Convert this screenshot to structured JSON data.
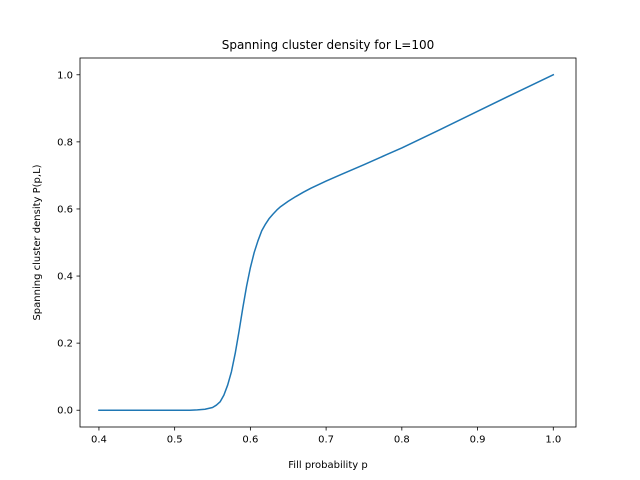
{
  "chart_data": {
    "type": "line",
    "title": "Spanning cluster density for L=100",
    "xlabel": "Fill probability p",
    "ylabel": "Spanning cluster density P(p,L)",
    "xlim": [
      0.375,
      1.03
    ],
    "ylim": [
      -0.05,
      1.05
    ],
    "xticks": [
      0.4,
      0.5,
      0.6,
      0.7,
      0.8,
      0.9,
      1.0
    ],
    "xtick_labels": [
      "0.4",
      "0.5",
      "0.6",
      "0.7",
      "0.8",
      "0.9",
      "1.0"
    ],
    "yticks": [
      0.0,
      0.2,
      0.4,
      0.6,
      0.8,
      1.0
    ],
    "ytick_labels": [
      "0.0",
      "0.2",
      "0.4",
      "0.6",
      "0.8",
      "1.0"
    ],
    "grid": false,
    "line_color": "#1f77b4",
    "series": [
      {
        "x": [
          0.4,
          0.45,
          0.5,
          0.52,
          0.53,
          0.54,
          0.55,
          0.555,
          0.56,
          0.565,
          0.57,
          0.575,
          0.58,
          0.585,
          0.59,
          0.595,
          0.6,
          0.605,
          0.61,
          0.615,
          0.62,
          0.625,
          0.63,
          0.635,
          0.64,
          0.65,
          0.66,
          0.67,
          0.68,
          0.7,
          0.72,
          0.75,
          0.78,
          0.8,
          0.85,
          0.9,
          0.95,
          1.0
        ],
        "y": [
          0.0,
          0.0,
          0.0,
          0.0,
          0.001,
          0.003,
          0.008,
          0.015,
          0.025,
          0.045,
          0.075,
          0.115,
          0.17,
          0.235,
          0.305,
          0.37,
          0.425,
          0.47,
          0.505,
          0.535,
          0.555,
          0.572,
          0.585,
          0.597,
          0.607,
          0.623,
          0.637,
          0.65,
          0.662,
          0.683,
          0.703,
          0.732,
          0.762,
          0.782,
          0.836,
          0.891,
          0.946,
          1.0
        ]
      }
    ]
  }
}
